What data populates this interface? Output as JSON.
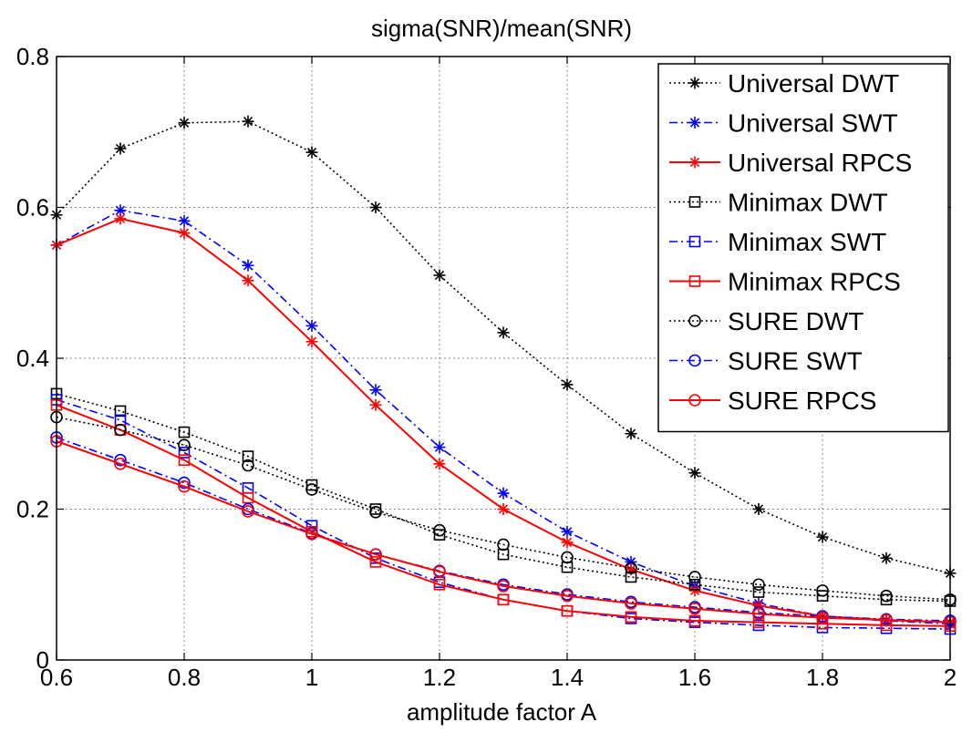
{
  "chart_data": {
    "type": "line",
    "title": "sigma(SNR)/mean(SNR)",
    "xlabel": "amplitude factor A",
    "ylabel": "",
    "xlim": [
      0.6,
      2.0
    ],
    "ylim": [
      0,
      0.8
    ],
    "grid": true,
    "legend_position": "top-right",
    "x": [
      0.6,
      0.7,
      0.8,
      0.9,
      1.0,
      1.1,
      1.2,
      1.3,
      1.4,
      1.5,
      1.6,
      1.7,
      1.8,
      1.9,
      2.0
    ],
    "xticks": [
      "0.6",
      "0.8",
      "1",
      "1.2",
      "1.4",
      "1.6",
      "1.8",
      "2"
    ],
    "yticks": [
      "0",
      "0.2",
      "0.4",
      "0.6",
      "0.8"
    ],
    "series": [
      {
        "name": "Universal DWT",
        "color": "#000000",
        "dash": "dotted",
        "marker": "asterisk",
        "values": [
          0.59,
          0.678,
          0.712,
          0.714,
          0.673,
          0.6,
          0.51,
          0.434,
          0.365,
          0.3,
          0.248,
          0.2,
          0.163,
          0.135,
          0.115
        ]
      },
      {
        "name": "Universal SWT",
        "color": "#0000ff",
        "dash": "dashdot",
        "marker": "asterisk",
        "values": [
          0.55,
          0.596,
          0.582,
          0.523,
          0.443,
          0.358,
          0.282,
          0.221,
          0.17,
          0.13,
          0.098,
          0.075,
          0.058,
          0.052,
          0.048
        ]
      },
      {
        "name": "Universal RPCS",
        "color": "#ff0000",
        "dash": "solid",
        "marker": "asterisk",
        "values": [
          0.55,
          0.585,
          0.566,
          0.503,
          0.422,
          0.338,
          0.26,
          0.2,
          0.156,
          0.12,
          0.092,
          0.072,
          0.058,
          0.053,
          0.05
        ]
      },
      {
        "name": "Minimax DWT",
        "color": "#000000",
        "dash": "dotted",
        "marker": "square",
        "values": [
          0.353,
          0.33,
          0.302,
          0.27,
          0.232,
          0.2,
          0.166,
          0.14,
          0.123,
          0.11,
          0.1,
          0.09,
          0.085,
          0.08,
          0.078
        ]
      },
      {
        "name": "Minimax SWT",
        "color": "#0000ff",
        "dash": "dashdot",
        "marker": "square",
        "values": [
          0.345,
          0.318,
          0.275,
          0.228,
          0.178,
          0.135,
          0.103,
          0.08,
          0.065,
          0.055,
          0.05,
          0.046,
          0.043,
          0.042,
          0.041
        ]
      },
      {
        "name": "Minimax RPCS",
        "color": "#ff0000",
        "dash": "solid",
        "marker": "square",
        "values": [
          0.338,
          0.305,
          0.265,
          0.215,
          0.17,
          0.13,
          0.1,
          0.08,
          0.065,
          0.057,
          0.052,
          0.05,
          0.048,
          0.046,
          0.045
        ]
      },
      {
        "name": "SURE DWT",
        "color": "#000000",
        "dash": "dotted",
        "marker": "circle",
        "values": [
          0.322,
          0.305,
          0.285,
          0.258,
          0.226,
          0.196,
          0.172,
          0.153,
          0.136,
          0.122,
          0.11,
          0.1,
          0.092,
          0.085,
          0.08
        ]
      },
      {
        "name": "SURE SWT",
        "color": "#0000ff",
        "dash": "dashdot",
        "marker": "circle",
        "values": [
          0.295,
          0.265,
          0.235,
          0.2,
          0.168,
          0.14,
          0.118,
          0.1,
          0.087,
          0.077,
          0.07,
          0.063,
          0.058,
          0.054,
          0.052
        ]
      },
      {
        "name": "SURE RPCS",
        "color": "#ff0000",
        "dash": "solid",
        "marker": "circle",
        "values": [
          0.29,
          0.26,
          0.23,
          0.197,
          0.167,
          0.14,
          0.117,
          0.098,
          0.085,
          0.075,
          0.068,
          0.061,
          0.056,
          0.053,
          0.05
        ]
      }
    ]
  }
}
